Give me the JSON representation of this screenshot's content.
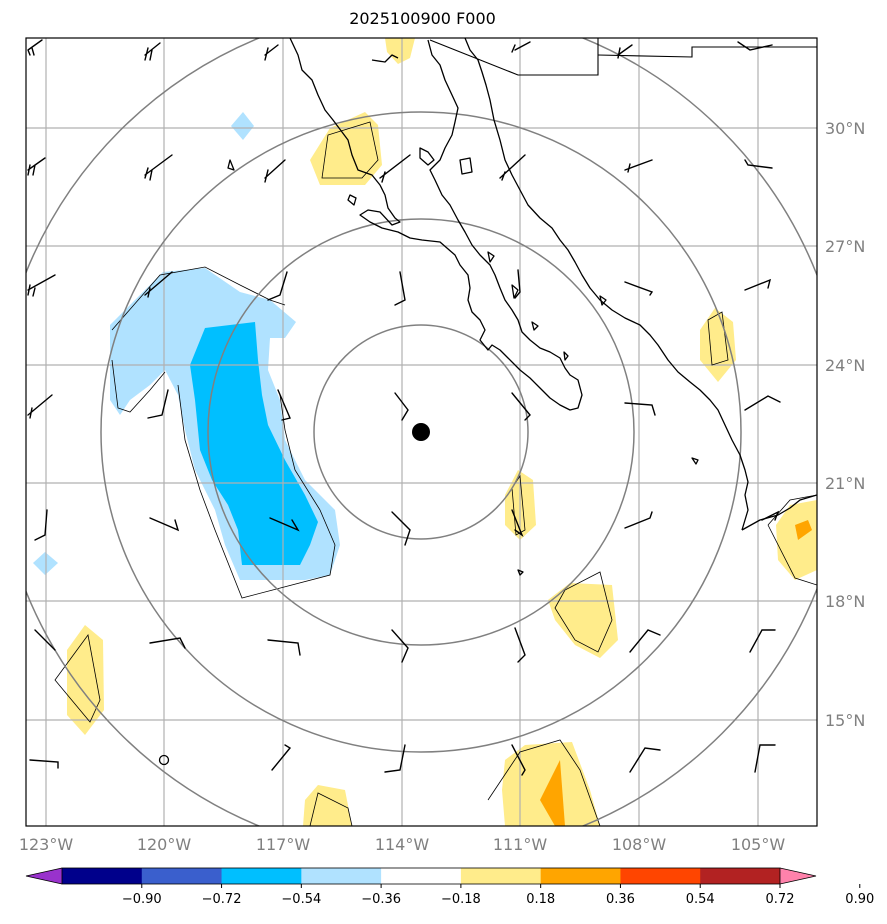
{
  "title": "2025100900 F000",
  "map": {
    "lon_range": [
      -124,
      -103.3
    ],
    "lat_range": [
      31.9,
      11.9
    ],
    "lon_ticks": [
      "123°W",
      "120°W",
      "117°W",
      "114°W",
      "111°W",
      "108°W",
      "105°W"
    ],
    "lat_ticks": [
      "30°N",
      "27°N",
      "24°N",
      "21°N",
      "18°N",
      "15°N"
    ],
    "storm_center": {
      "lon": -113.5,
      "lat": 22.3
    },
    "range_rings": 4,
    "gridlines": true
  },
  "colorbar": {
    "levels": [
      "−0.90",
      "−0.72",
      "−0.54",
      "−0.36",
      "−0.18",
      "0.18",
      "0.36",
      "0.54",
      "0.72",
      "0.90"
    ],
    "colors": [
      "#9932cc",
      "#00008b",
      "#3a5fcd",
      "#00bfff",
      "#b0e2ff",
      "#ffffff",
      "#ffec8b",
      "#ffa500",
      "#ff4500",
      "#b22222",
      "#ff82ab"
    ]
  }
}
